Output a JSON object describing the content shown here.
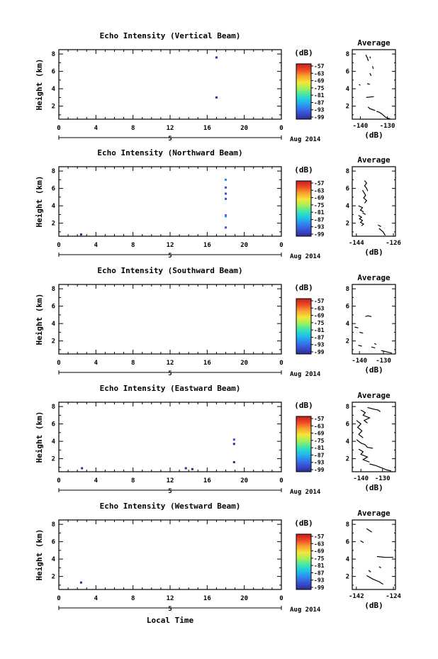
{
  "figure": {
    "xaxis_main_label": "Local Time",
    "date_label": "Aug 2014",
    "day_label": "5",
    "colorbar_unit": "(dB)",
    "colorbar_ticks": [
      "-57",
      "-63",
      "-69",
      "-75",
      "-81",
      "-87",
      "-93",
      "-99"
    ],
    "colorbar_colors": [
      "#2a2f8e",
      "#3a4fd6",
      "#2f86ee",
      "#1fc3ea",
      "#3fe6b0",
      "#a3f05a",
      "#f5e53a",
      "#f9a42e",
      "#ef4a25",
      "#c41e1e"
    ]
  },
  "chart_data": [
    {
      "type": "heatmap",
      "title": "Echo Intensity (Vertical Beam)",
      "ylabel": "Height (km)",
      "xlabel": "Local Time",
      "x_ticks": [
        "0",
        "4",
        "8",
        "12",
        "16",
        "20",
        "0"
      ],
      "y_ticks": [
        "2",
        "4",
        "6",
        "8"
      ],
      "xlim": [
        0,
        24
      ],
      "ylim": [
        0.5,
        8.5
      ],
      "points": [
        [
          17.0,
          7.6,
          "#2a2f8e"
        ],
        [
          17.0,
          3.0,
          "#2a2f8e"
        ]
      ]
    },
    {
      "type": "heatmap",
      "title": "Echo Intensity (Northward Beam)",
      "ylabel": "Height (km)",
      "xlabel": "Local Time",
      "x_ticks": [
        "0",
        "4",
        "8",
        "12",
        "16",
        "20",
        "0"
      ],
      "y_ticks": [
        "2",
        "4",
        "6",
        "8"
      ],
      "xlim": [
        0,
        24
      ],
      "ylim": [
        0.5,
        8.5
      ],
      "points": [
        [
          18.0,
          7.0,
          "#2f86ee"
        ],
        [
          18.0,
          6.1,
          "#3a4fd6"
        ],
        [
          18.0,
          5.4,
          "#3a4fd6"
        ],
        [
          18.0,
          4.8,
          "#3a4fd6"
        ],
        [
          18.0,
          2.9,
          "#3a4fd6"
        ],
        [
          18.0,
          2.8,
          "#2f86ee"
        ],
        [
          18.0,
          1.5,
          "#3a4fd6"
        ],
        [
          2.4,
          0.7,
          "#2a2f8e"
        ]
      ]
    },
    {
      "type": "heatmap",
      "title": "Echo Intensity (Southward Beam)",
      "ylabel": "Height (km)",
      "xlabel": "Local Time",
      "x_ticks": [
        "0",
        "4",
        "8",
        "12",
        "16",
        "20",
        "0"
      ],
      "y_ticks": [
        "2",
        "4",
        "6",
        "8"
      ],
      "xlim": [
        0,
        24
      ],
      "ylim": [
        0.5,
        8.5
      ],
      "points": []
    },
    {
      "type": "heatmap",
      "title": "Echo Intensity (Eastward Beam)",
      "ylabel": "Height (km)",
      "xlabel": "Local Time",
      "x_ticks": [
        "0",
        "4",
        "8",
        "12",
        "16",
        "20",
        "0"
      ],
      "y_ticks": [
        "2",
        "4",
        "6",
        "8"
      ],
      "xlim": [
        0,
        24
      ],
      "ylim": [
        0.5,
        8.5
      ],
      "points": [
        [
          18.9,
          4.2,
          "#3a4fd6"
        ],
        [
          18.9,
          3.7,
          "#2a2f8e"
        ],
        [
          18.9,
          1.6,
          "#2a2f8e"
        ],
        [
          2.5,
          0.9,
          "#2a2f8e"
        ],
        [
          13.7,
          0.9,
          "#2a2f8e"
        ],
        [
          14.4,
          0.8,
          "#2a2f8e"
        ]
      ]
    },
    {
      "type": "heatmap",
      "title": "Echo Intensity (Westward Beam)",
      "ylabel": "Height (km)",
      "xlabel": "Local Time",
      "x_ticks": [
        "0",
        "4",
        "8",
        "12",
        "16",
        "20",
        "0"
      ],
      "y_ticks": [
        "2",
        "4",
        "6",
        "8"
      ],
      "xlim": [
        0,
        24
      ],
      "ylim": [
        0.5,
        8.5
      ],
      "points": [
        [
          2.4,
          1.3,
          "#2a2f8e"
        ]
      ]
    },
    {
      "type": "line",
      "title": "Average",
      "xlabel": "(dB)",
      "x_ticks": [
        "-140",
        "-130"
      ],
      "x_tick_values": [
        -140,
        -130
      ],
      "xlim": [
        -143,
        -127
      ],
      "y_ticks": [
        "2",
        "4",
        "6",
        "8"
      ],
      "ylim": [
        0.5,
        8.5
      ],
      "series": [
        {
          "x": [
            -138,
            -137.5,
            -137
          ],
          "y": [
            7.9,
            7.6,
            7.2
          ]
        },
        {
          "x": [
            -136.5,
            -136.2
          ],
          "y": [
            7.7,
            7.5
          ]
        },
        {
          "x": [
            -135.5,
            -135.2
          ],
          "y": [
            6.6,
            6.3
          ]
        },
        {
          "x": [
            -136.5,
            -136
          ],
          "y": [
            5.8,
            5.5
          ]
        },
        {
          "x": [
            -140.5,
            -140
          ],
          "y": [
            4.5,
            4.4
          ]
        },
        {
          "x": [
            -137.5,
            -136.5
          ],
          "y": [
            4.6,
            4.5
          ]
        },
        {
          "x": [
            -137.8,
            -135
          ],
          "y": [
            3.0,
            3.1
          ]
        },
        {
          "x": [
            -137.2,
            -136.4,
            -135.5,
            -134.5
          ],
          "y": [
            1.9,
            1.7,
            1.6,
            1.5
          ]
        },
        {
          "x": [
            -134,
            -133,
            -132,
            -131.3,
            -130.5,
            -129.7,
            -129
          ],
          "y": [
            1.4,
            1.3,
            1.1,
            0.9,
            0.7,
            0.6,
            0.55
          ]
        }
      ]
    },
    {
      "type": "line",
      "title": "Average",
      "xlabel": "(dB)",
      "x_ticks": [
        "-144",
        "-126"
      ],
      "x_tick_values": [
        -144,
        -126
      ],
      "xlim": [
        -146,
        -125
      ],
      "y_ticks": [
        "2",
        "4",
        "6",
        "8"
      ],
      "ylim": [
        0.5,
        8.5
      ],
      "series": [
        {
          "x": [
            -140,
            -139,
            -140,
            -139,
            -138.5
          ],
          "y": [
            6.9,
            6.6,
            6.3,
            6.0,
            5.7
          ]
        },
        {
          "x": [
            -141,
            -140.2,
            -139.5,
            -140.5,
            -139,
            -140
          ],
          "y": [
            5.8,
            5.5,
            5.2,
            4.9,
            4.6,
            4.3
          ]
        },
        {
          "x": [
            -143,
            -141,
            -142,
            -140.5
          ],
          "y": [
            4.0,
            3.8,
            3.5,
            3.3
          ]
        },
        {
          "x": [
            -143,
            -141.5,
            -142.5,
            -141,
            -142,
            -140.5,
            -141.5
          ],
          "y": [
            2.9,
            2.7,
            2.5,
            2.3,
            2.1,
            1.9,
            1.7
          ]
        },
        {
          "x": [
            -141,
            -139.5
          ],
          "y": [
            3.2,
            3.0
          ]
        },
        {
          "x": [
            -133,
            -131,
            -130
          ],
          "y": [
            1.4,
            1.0,
            0.6
          ]
        },
        {
          "x": [
            -133.5,
            -132
          ],
          "y": [
            1.8,
            1.6
          ]
        }
      ]
    },
    {
      "type": "line",
      "title": "Average",
      "xlabel": "(dB)",
      "x_ticks": [
        "-140",
        "-130"
      ],
      "x_tick_values": [
        -140,
        -130
      ],
      "xlim": [
        -143,
        -125
      ],
      "y_ticks": [
        "2",
        "4",
        "6",
        "8"
      ],
      "ylim": [
        0.5,
        8.5
      ],
      "series": [
        {
          "x": [
            -137.5,
            -136.5,
            -135
          ],
          "y": [
            4.8,
            4.9,
            4.8
          ]
        },
        {
          "x": [
            -142,
            -140.5
          ],
          "y": [
            3.6,
            3.5
          ]
        },
        {
          "x": [
            -140,
            -138.5
          ],
          "y": [
            3.0,
            2.9
          ]
        },
        {
          "x": [
            -140.5,
            -139
          ],
          "y": [
            1.5,
            1.4
          ]
        },
        {
          "x": [
            -135,
            -133.5
          ],
          "y": [
            1.3,
            1.2
          ]
        },
        {
          "x": [
            -133.8,
            -133
          ],
          "y": [
            1.7,
            1.6
          ]
        },
        {
          "x": [
            -131,
            -129.5,
            -128,
            -126.5
          ],
          "y": [
            0.9,
            0.8,
            0.7,
            0.6
          ]
        }
      ]
    },
    {
      "type": "line",
      "title": "Average",
      "xlabel": "(dB)",
      "x_ticks": [
        "-140",
        "-130"
      ],
      "x_tick_values": [
        -140,
        -130
      ],
      "xlim": [
        -144,
        -124
      ],
      "y_ticks": [
        "2",
        "4",
        "6",
        "8"
      ],
      "ylim": [
        0.5,
        8.5
      ],
      "series": [
        {
          "x": [
            -137,
            -134,
            -132,
            -131
          ],
          "y": [
            7.9,
            7.7,
            7.6,
            7.4
          ]
        },
        {
          "x": [
            -140,
            -138,
            -139,
            -136,
            -138.5,
            -137
          ],
          "y": [
            7.6,
            7.3,
            7.0,
            6.7,
            6.4,
            6.1
          ]
        },
        {
          "x": [
            -142,
            -140,
            -141.5,
            -139.5,
            -141,
            -139
          ],
          "y": [
            6.4,
            6.0,
            5.6,
            5.2,
            4.8,
            4.4
          ]
        },
        {
          "x": [
            -142,
            -141,
            -140,
            -138,
            -137
          ],
          "y": [
            4.2,
            4.0,
            3.8,
            3.6,
            3.3
          ]
        },
        {
          "x": [
            -141,
            -139,
            -140,
            -137,
            -139,
            -136
          ],
          "y": [
            3.1,
            2.8,
            2.5,
            2.2,
            1.9,
            1.6
          ]
        },
        {
          "x": [
            -136,
            -133,
            -130,
            -128,
            -126
          ],
          "y": [
            1.4,
            1.2,
            0.9,
            0.7,
            0.6
          ]
        },
        {
          "x": [
            -137,
            -134.5
          ],
          "y": [
            3.3,
            3.2
          ]
        }
      ]
    },
    {
      "type": "line",
      "title": "Average",
      "xlabel": "(dB)",
      "x_ticks": [
        "-142",
        "-124"
      ],
      "x_tick_values": [
        -142,
        -124
      ],
      "xlim": [
        -144,
        -123
      ],
      "y_ticks": [
        "2",
        "4",
        "6",
        "8"
      ],
      "ylim": [
        0.5,
        8.5
      ],
      "series": [
        {
          "x": [
            -137,
            -134.5
          ],
          "y": [
            7.5,
            7.1
          ]
        },
        {
          "x": [
            -140,
            -138.5
          ],
          "y": [
            6.1,
            5.9
          ]
        },
        {
          "x": [
            -132,
            -128,
            -124
          ],
          "y": [
            4.3,
            4.2,
            4.2
          ]
        },
        {
          "x": [
            -136,
            -135
          ],
          "y": [
            2.7,
            2.5
          ]
        },
        {
          "x": [
            -131,
            -130
          ],
          "y": [
            3.1,
            3.0
          ]
        },
        {
          "x": [
            -137,
            -134,
            -131,
            -129
          ],
          "y": [
            2.1,
            1.7,
            1.4,
            1.1
          ]
        }
      ]
    }
  ]
}
